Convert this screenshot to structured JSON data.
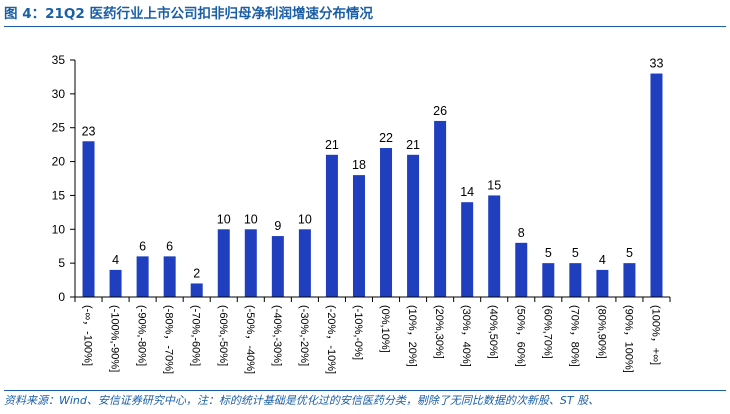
{
  "header": {
    "title": "图 4：21Q2 医药行业上市公司扣非归母净利润增速分布情况"
  },
  "footer": {
    "source": "资料来源：Wind、安信证券研究中心，注：标的统计基础是优化过的安信医药分类，剔除了无同比数据的次新股、ST 股、"
  },
  "colors": {
    "bar": "#1f3fbf",
    "accent": "#1a5fa6",
    "axis": "#000000"
  },
  "chart_data": {
    "type": "bar",
    "title": "",
    "xlabel": "",
    "ylabel": "",
    "ylim": [
      0,
      35
    ],
    "yticks": [
      0,
      5,
      10,
      15,
      20,
      25,
      30,
      35
    ],
    "grid": false,
    "legend": "none",
    "categories": [
      "(-∞，-100%]",
      "(-100%,-90%]",
      "(-90%,-80%]",
      "(-80%，-70%]",
      "(-70%,-60%]",
      "(-60%,-50%]",
      "(-50%，-40%]",
      "(-40%,-30%]",
      "(-30%,-20%]",
      "(-20%，-10%]",
      "(-10%,-0%]",
      "(0%,10%]",
      "(10%，20%]",
      "(20%,30%]",
      "(30%，40%]",
      "(40%,50%]",
      "(50%，60%]",
      "(60%,70%]",
      "(70%，80%]",
      "(80%,90%]",
      "(90%，100%]",
      "(100%，+∞]"
    ],
    "values": [
      23,
      4,
      6,
      6,
      2,
      10,
      10,
      9,
      10,
      21,
      18,
      22,
      21,
      26,
      14,
      15,
      8,
      5,
      5,
      4,
      5,
      33
    ]
  }
}
